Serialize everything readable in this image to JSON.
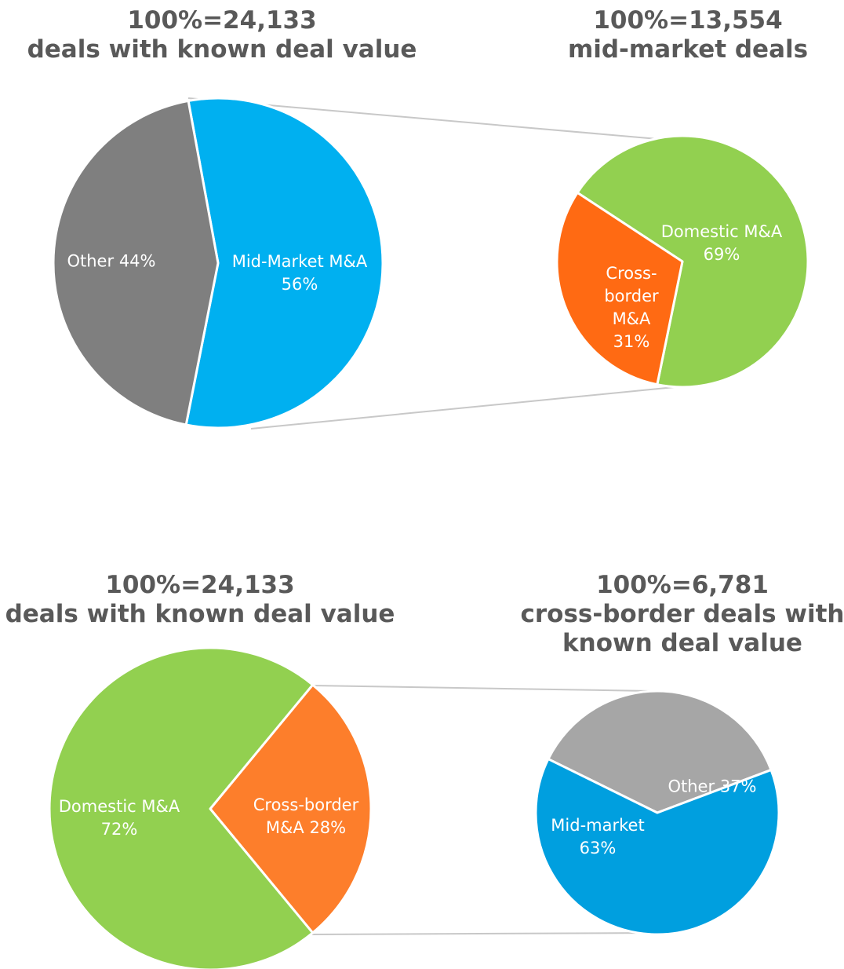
{
  "chart_data": [
    {
      "type": "pie",
      "title": [
        "100%=24,133",
        "deals with known deal value"
      ],
      "categories": [
        "Mid-Market M&A",
        "Other"
      ],
      "values": [
        56,
        44
      ],
      "value_labels": [
        "56%",
        "44%"
      ],
      "colors": [
        "#00b0f0",
        "#7f7f7f"
      ]
    },
    {
      "type": "pie",
      "title": [
        "100%=13,554",
        "mid-market deals"
      ],
      "categories": [
        "Domestic M&A",
        "Cross-border M&A"
      ],
      "values": [
        69,
        31
      ],
      "value_labels": [
        "69%",
        "31%"
      ],
      "colors": [
        "#92d050",
        "#ff6a13"
      ]
    },
    {
      "type": "pie",
      "title": [
        "100%=24,133",
        "deals with known deal value"
      ],
      "categories": [
        "Cross-border M&A",
        "Domestic M&A"
      ],
      "values": [
        28,
        72
      ],
      "value_labels": [
        "28%",
        "72%"
      ],
      "colors": [
        "#fd7e2b",
        "#92d050"
      ]
    },
    {
      "type": "pie",
      "title": [
        "100%=6,781",
        "cross-border deals with",
        "known deal value"
      ],
      "categories": [
        "Other",
        "Mid-market"
      ],
      "values": [
        37,
        63
      ],
      "value_labels": [
        "37%",
        "63%"
      ],
      "colors": [
        "#a6a6a6",
        "#009fdf"
      ]
    }
  ]
}
